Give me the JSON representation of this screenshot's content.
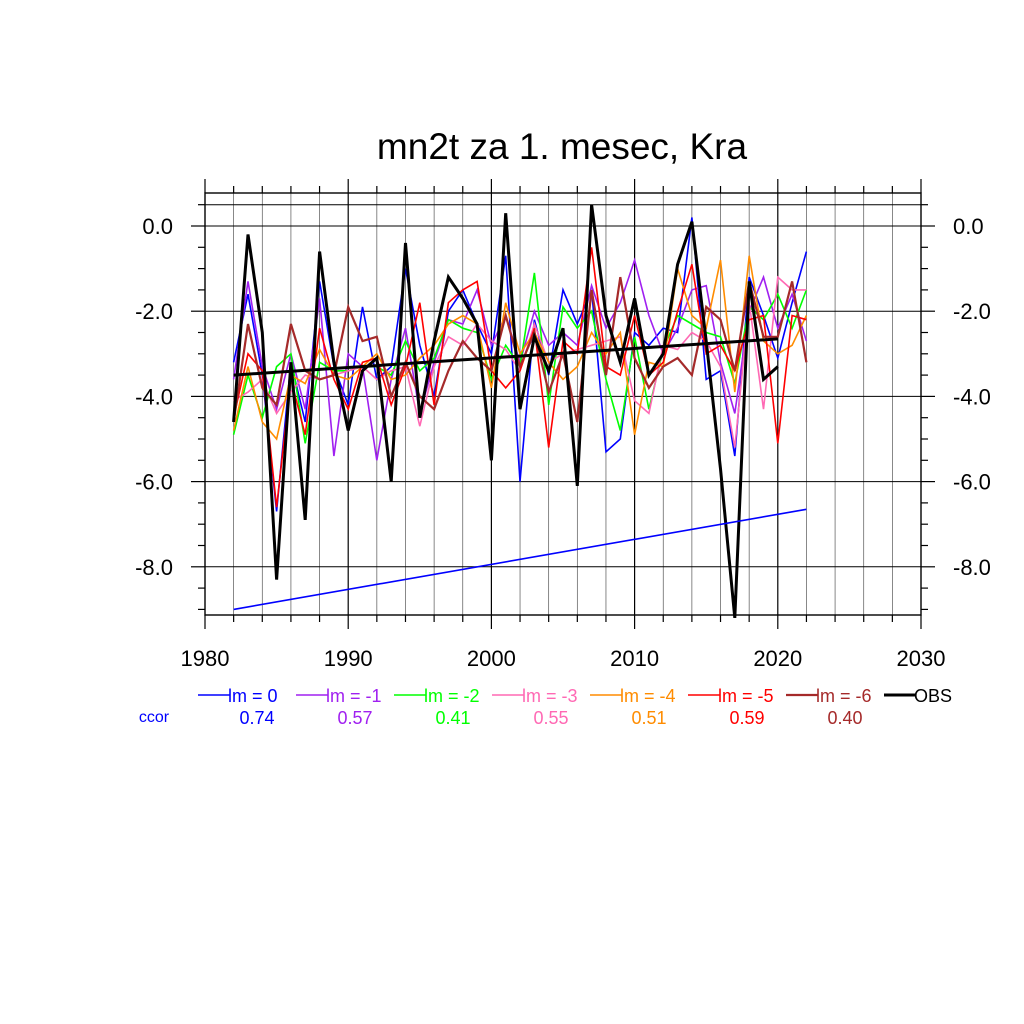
{
  "chart_data": {
    "type": "line",
    "title": "mn2t za 1. mesec, Kra",
    "xlabel": "",
    "ylabel": "",
    "xlim": [
      1980,
      2030
    ],
    "ylim": [
      -9.2,
      0.5
    ],
    "x_ticks": [
      1980,
      1990,
      2000,
      2010,
      2020,
      2030
    ],
    "y_ticks": [
      0.0,
      -2.0,
      -4.0,
      -6.0,
      -8.0
    ],
    "y_tick_labels": [
      "0.0",
      "-2.0",
      "-4.0",
      "-6.0",
      "-8.0"
    ],
    "grid": true,
    "legend_position": "bottom",
    "x": [
      1982,
      1983,
      1984,
      1985,
      1986,
      1987,
      1988,
      1989,
      1990,
      1991,
      1992,
      1993,
      1994,
      1995,
      1996,
      1997,
      1998,
      1999,
      2000,
      2001,
      2002,
      2003,
      2004,
      2005,
      2006,
      2007,
      2008,
      2009,
      2010,
      2011,
      2012,
      2013,
      2014,
      2015,
      2016,
      2017,
      2018,
      2019,
      2020,
      2021,
      2022
    ],
    "series": [
      {
        "name": "lm = 0",
        "color": "#0000ff",
        "width": 1.6,
        "values": [
          -3.2,
          -1.6,
          -3.5,
          -6.7,
          -3.2,
          -4.6,
          -1.3,
          -3.3,
          -4.2,
          -1.9,
          -3.6,
          -3.3,
          -1.0,
          -2.8,
          -4.0,
          -2.0,
          -1.5,
          -2.3,
          -3.0,
          -0.7,
          -6.0,
          -2.2,
          -3.5,
          -1.5,
          -2.3,
          -1.5,
          -5.3,
          -5.0,
          -2.5,
          -2.8,
          -2.4,
          -2.5,
          0.2,
          -3.6,
          -3.4,
          -5.4,
          -1.2,
          -2.1,
          -3.1,
          -1.8,
          -0.6
        ]
      },
      {
        "name": "lm = -1",
        "color": "#a020f0",
        "width": 1.6,
        "values": [
          -3.6,
          -1.3,
          -3.3,
          -4.3,
          -3.0,
          -4.3,
          -1.7,
          -5.4,
          -3.0,
          -3.3,
          -5.5,
          -3.6,
          -2.4,
          -4.4,
          -3.2,
          -2.2,
          -2.3,
          -1.5,
          -2.8,
          -2.1,
          -3.2,
          -2.0,
          -2.8,
          -2.5,
          -2.8,
          -1.4,
          -2.4,
          -1.8,
          -0.8,
          -2.1,
          -3.0,
          -2.4,
          -1.5,
          -1.4,
          -3.2,
          -4.4,
          -2.0,
          -1.2,
          -2.4,
          -1.6,
          -2.7
        ]
      },
      {
        "name": "lm = -2",
        "color": "#00ff00",
        "width": 1.6,
        "values": [
          -4.9,
          -3.5,
          -4.5,
          -3.3,
          -3.0,
          -5.1,
          -3.2,
          -3.4,
          -3.4,
          -3.3,
          -3.3,
          -3.5,
          -2.7,
          -3.4,
          -3.1,
          -2.2,
          -2.4,
          -2.5,
          -3.6,
          -2.8,
          -3.3,
          -1.1,
          -4.2,
          -1.9,
          -2.4,
          -2.0,
          -3.6,
          -4.8,
          -2.6,
          -4.3,
          -2.9,
          -2.1,
          -2.3,
          -2.5,
          -2.6,
          -3.7,
          -1.9,
          -2.2,
          -1.6,
          -2.4,
          -1.5
        ]
      },
      {
        "name": "lm = -3",
        "color": "#ff69b4",
        "width": 1.6,
        "values": [
          -4.1,
          -3.9,
          -3.6,
          -4.4,
          -3.9,
          -3.5,
          -3.6,
          -3.5,
          -3.4,
          -3.3,
          -3.6,
          -3.4,
          -3.3,
          -4.7,
          -3.3,
          -2.6,
          -2.8,
          -2.3,
          -2.7,
          -2.9,
          -3.4,
          -2.3,
          -3.2,
          -3.0,
          -2.9,
          -2.8,
          -2.7,
          -2.6,
          -4.1,
          -4.4,
          -2.8,
          -2.9,
          -2.5,
          -2.7,
          -3.3,
          -5.2,
          -1.8,
          -4.3,
          -1.2,
          -1.5,
          -1.5
        ]
      },
      {
        "name": "lm = -4",
        "color": "#ff8c00",
        "width": 1.6,
        "values": [
          -4.8,
          -3.3,
          -4.6,
          -5.0,
          -3.5,
          -3.7,
          -2.9,
          -3.5,
          -3.6,
          -3.3,
          -3.0,
          -3.6,
          -3.5,
          -3.1,
          -2.8,
          -2.3,
          -2.1,
          -2.3,
          -3.8,
          -1.8,
          -3.0,
          -2.5,
          -3.2,
          -3.6,
          -3.3,
          -2.5,
          -3.0,
          -2.5,
          -4.9,
          -3.2,
          -3.3,
          -1.0,
          -2.1,
          -2.4,
          -0.8,
          -3.9,
          -0.7,
          -2.7,
          -3.0,
          -2.8,
          -2.1
        ]
      },
      {
        "name": "lm = -5",
        "color": "#ff0000",
        "width": 1.6,
        "values": [
          -4.5,
          -3.0,
          -3.4,
          -6.6,
          -3.6,
          -4.9,
          -2.4,
          -3.6,
          -4.3,
          -3.2,
          -3.1,
          -4.2,
          -3.3,
          -1.8,
          -4.2,
          -1.8,
          -1.5,
          -1.3,
          -3.4,
          -3.8,
          -3.4,
          -2.4,
          -5.2,
          -2.7,
          -3.0,
          -0.5,
          -3.3,
          -3.5,
          -2.1,
          -3.5,
          -3.2,
          -2.0,
          -0.9,
          -3.0,
          -2.8,
          -3.4,
          -2.2,
          -2.1,
          -5.1,
          -2.1,
          -2.2
        ]
      },
      {
        "name": "lm = -6",
        "color": "#a52a2a",
        "width": 2.2,
        "values": [
          -4.6,
          -2.3,
          -3.8,
          -4.2,
          -2.3,
          -3.4,
          -3.6,
          -3.5,
          -1.9,
          -2.7,
          -2.6,
          -4.0,
          -3.2,
          -4.0,
          -4.3,
          -3.4,
          -2.7,
          -3.1,
          -3.4,
          -2.1,
          -3.3,
          -2.5,
          -3.9,
          -3.0,
          -4.6,
          -1.5,
          -3.5,
          -1.2,
          -3.1,
          -3.8,
          -3.3,
          -3.1,
          -3.5,
          -1.9,
          -2.2,
          -3.4,
          -1.3,
          -2.6,
          -2.6,
          -1.3,
          -3.2
        ]
      },
      {
        "name": "OBS",
        "color": "#000000",
        "width": 3.0,
        "values": [
          -4.6,
          -0.2,
          -2.5,
          -8.3,
          -3.2,
          -6.9,
          -0.6,
          -3.2,
          -4.8,
          -3.4,
          -3.1,
          -6.0,
          -0.4,
          -4.5,
          -2.7,
          -1.2,
          -1.7,
          -2.3,
          -5.5,
          0.3,
          -4.3,
          -2.6,
          -3.4,
          -2.4,
          -6.1,
          0.5,
          -2.1,
          -3.2,
          -1.7,
          -3.5,
          -3.0,
          -0.9,
          0.1,
          -2.7,
          -5.7,
          -9.2,
          -1.3,
          -3.6,
          -3.3,
          null,
          null
        ]
      }
    ],
    "trend_lines": [
      {
        "series": "OBS",
        "color": "#000000",
        "width": 3.0,
        "x": [
          1982,
          2020
        ],
        "y": [
          -3.5,
          -2.65
        ]
      },
      {
        "series": "lm = 0",
        "color": "#0000ff",
        "width": 1.6,
        "x": [
          1982,
          2022
        ],
        "y": [
          -9.0,
          -6.65
        ]
      }
    ],
    "ccor": {
      "label": "ccor",
      "label_color": "#0000ff",
      "values": [
        "0.74",
        "0.57",
        "0.41",
        "0.55",
        "0.51",
        "0.59",
        "0.40"
      ]
    }
  }
}
